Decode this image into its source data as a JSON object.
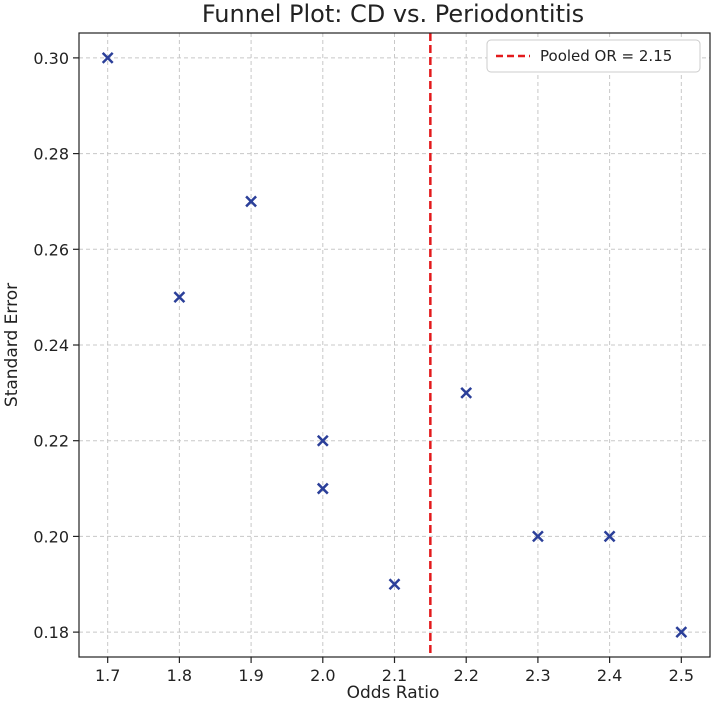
{
  "chart_data": {
    "type": "scatter",
    "title": "Funnel Plot: CD vs. Periodontitis",
    "xlabel": "Odds Ratio",
    "ylabel": "Standard Error",
    "xlim": [
      1.66,
      2.54
    ],
    "ylim": [
      0.1748,
      0.3052
    ],
    "xticks": [
      1.7,
      1.8,
      1.9,
      2.0,
      2.1,
      2.2,
      2.3,
      2.4,
      2.5
    ],
    "xtick_labels": [
      "1.7",
      "1.8",
      "1.9",
      "2.0",
      "2.1",
      "2.2",
      "2.3",
      "2.4",
      "2.5"
    ],
    "yticks": [
      0.18,
      0.2,
      0.22,
      0.24,
      0.26,
      0.28,
      0.3
    ],
    "ytick_labels": [
      "0.18",
      "0.20",
      "0.22",
      "0.24",
      "0.26",
      "0.28",
      "0.30"
    ],
    "grid": true,
    "legend_position": "top-right",
    "series": [
      {
        "marker": "x",
        "color": "#2b3f99",
        "x": [
          1.7,
          1.8,
          1.9,
          2.0,
          2.0,
          2.1,
          2.2,
          2.3,
          2.4,
          2.5
        ],
        "y": [
          0.3,
          0.25,
          0.27,
          0.22,
          0.21,
          0.19,
          0.23,
          0.2,
          0.2,
          0.18
        ]
      }
    ],
    "reference_line": {
      "orientation": "vertical",
      "x": 2.15,
      "style": "dashed",
      "color": "#e31a1c",
      "label": "Pooled OR = 2.15"
    }
  }
}
